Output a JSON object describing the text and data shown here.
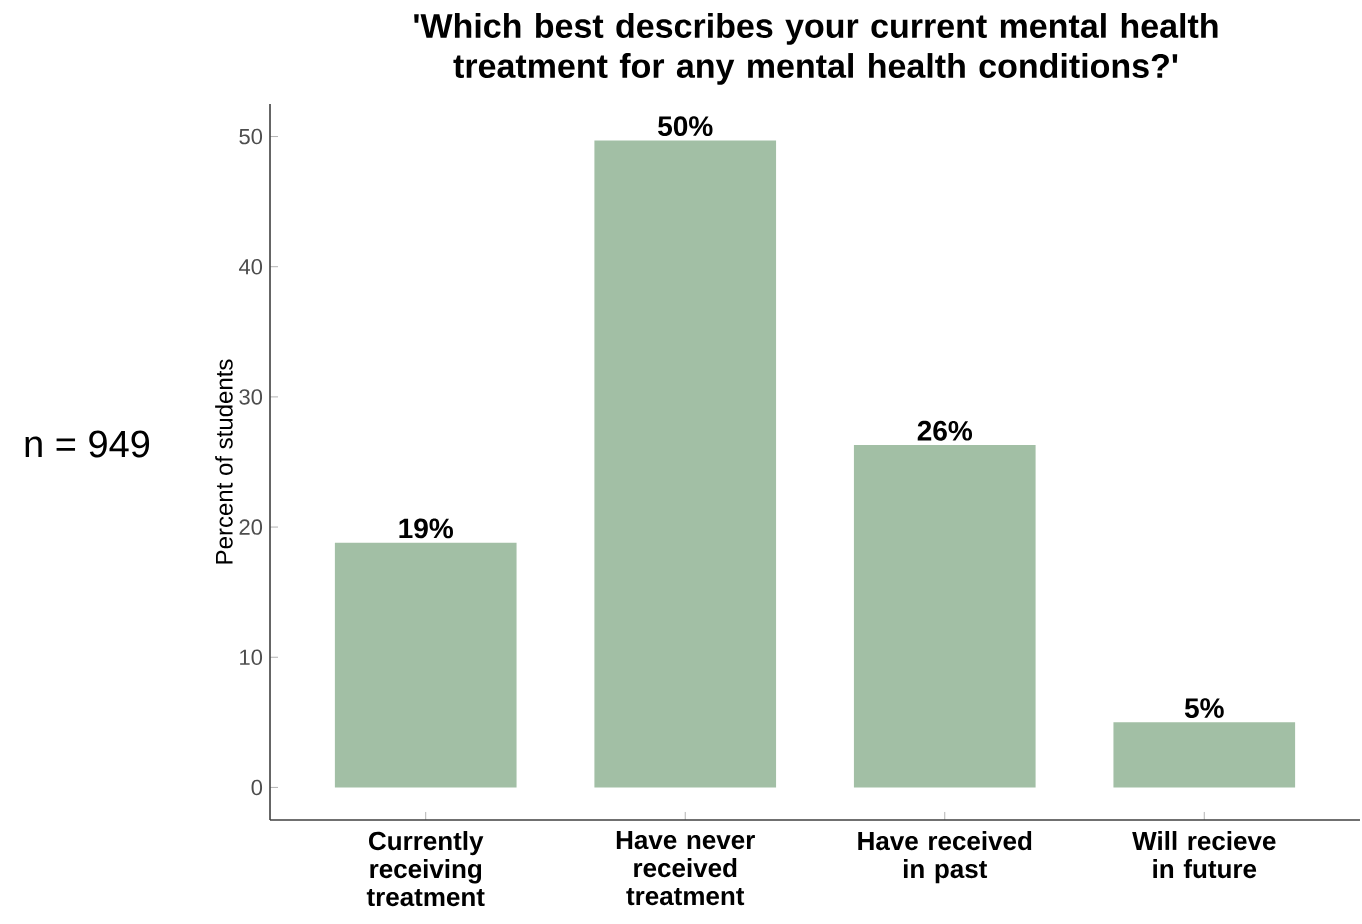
{
  "chart_data": {
    "type": "bar",
    "title": "'Which best describes your current mental health treatment for any mental health conditions?'",
    "ylabel": "Percent of students",
    "categories": [
      "Currently receiving treatment",
      "Have never received treatment",
      "Have received in past",
      "Will recieve in future"
    ],
    "values": [
      18.8,
      49.7,
      26.3,
      5.0
    ],
    "value_labels": [
      "19%",
      "50%",
      "26%",
      "5%"
    ],
    "color": "#a2bfa5",
    "ylim": [
      -2.5,
      52.5
    ],
    "yticks": [
      0,
      10,
      20,
      30,
      40,
      50
    ],
    "grid": false,
    "annotations": [
      "n = 949"
    ]
  }
}
